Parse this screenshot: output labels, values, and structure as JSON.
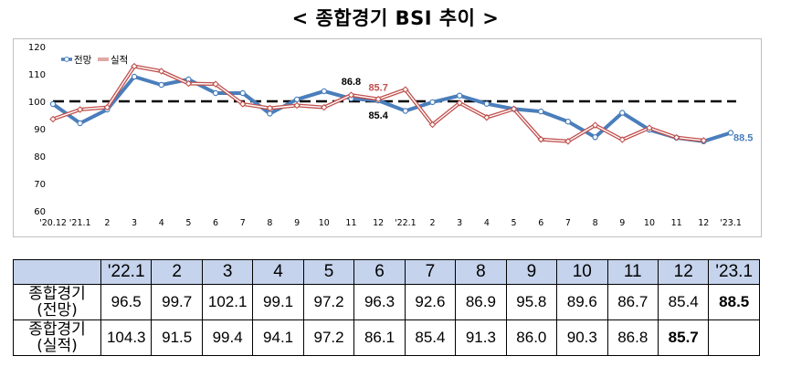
{
  "page_title": "< 종합경기 BSI 추이 >",
  "chart_data": {
    "type": "line",
    "title": "< 종합경기 BSI 추이 >",
    "x": [
      "'20.12",
      "'21.1",
      "2",
      "3",
      "4",
      "5",
      "6",
      "7",
      "8",
      "9",
      "10",
      "11",
      "12",
      "'22.1",
      "2",
      "3",
      "4",
      "5",
      "6",
      "7",
      "8",
      "9",
      "10",
      "11",
      "12",
      "'23.1"
    ],
    "series": [
      {
        "name": "전망",
        "color": "#4a7ebb",
        "values": [
          99.0,
          92.0,
          97.0,
          109.0,
          106.0,
          108.0,
          103.0,
          103.0,
          95.5,
          100.7,
          103.7,
          101.0,
          100.3,
          96.5,
          99.7,
          102.1,
          99.1,
          97.2,
          96.3,
          92.6,
          86.9,
          95.8,
          89.6,
          86.7,
          85.4,
          88.5
        ]
      },
      {
        "name": "실적",
        "color": "#c0504d",
        "values": [
          93.5,
          97.0,
          97.8,
          112.8,
          111.0,
          106.5,
          106.3,
          99.0,
          97.5,
          98.5,
          97.8,
          102.3,
          100.8,
          104.3,
          91.5,
          99.4,
          94.1,
          97.2,
          86.1,
          85.4,
          91.3,
          86.0,
          90.3,
          86.8,
          85.7,
          null
        ]
      }
    ],
    "ylim": [
      60,
      120
    ],
    "yticks": [
      "60",
      "70",
      "80",
      "90",
      "100",
      "110",
      "120"
    ],
    "reference_line": 100,
    "legend_position": "top-left",
    "annotations": [
      {
        "text": "86.8",
        "series": "실적",
        "x": "11"
      },
      {
        "text": "85.7",
        "series": "실적",
        "x": "12"
      },
      {
        "text": "85.4",
        "series": "전망",
        "x": "12"
      },
      {
        "text": "88.5",
        "series": "전망",
        "x": "'23.1"
      }
    ]
  },
  "table": {
    "headers": [
      "'22.1",
      "2",
      "3",
      "4",
      "5",
      "6",
      "7",
      "8",
      "9",
      "10",
      "11",
      "12",
      "'23.1"
    ],
    "rows": [
      {
        "label_line1": "종합경기",
        "label_line2": "(전망)",
        "values": [
          "96.5",
          "99.7",
          "102.1",
          "99.1",
          "97.2",
          "96.3",
          "92.6",
          "86.9",
          "95.8",
          "89.6",
          "86.7",
          "85.4",
          "88.5"
        ],
        "bold_index": 12
      },
      {
        "label_line1": "종합경기",
        "label_line2": "(실적)",
        "values": [
          "104.3",
          "91.5",
          "99.4",
          "94.1",
          "97.2",
          "86.1",
          "85.4",
          "91.3",
          "86.0",
          "90.3",
          "86.8",
          "85.7",
          ""
        ],
        "bold_index": 11
      }
    ]
  }
}
